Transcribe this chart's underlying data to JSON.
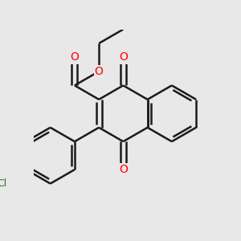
{
  "background_color": "#e8e8e8",
  "bond_color": "#1a1a1a",
  "bond_width": 1.8,
  "atom_colors": {
    "O": "#ff0000",
    "Cl": "#208020",
    "C": "#1a1a1a"
  },
  "font_size_O": 10,
  "font_size_Cl": 9,
  "fig_width": 3.0,
  "fig_height": 3.0,
  "dpi": 100
}
